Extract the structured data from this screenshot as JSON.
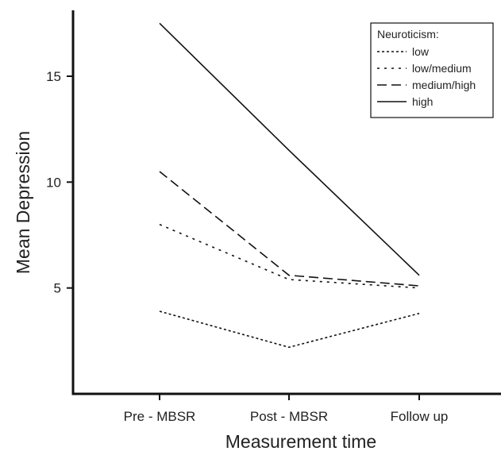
{
  "chart_data": {
    "type": "line",
    "categories": [
      "Pre - MBSR",
      "Post - MBSR",
      "Follow up"
    ],
    "ylabel": "Mean Depression",
    "xlabel": "Measurement time",
    "ylim": [
      0,
      18
    ],
    "yticks": [
      5,
      10,
      15
    ],
    "legend": {
      "title": "Neuroticism:",
      "position": "top-right"
    },
    "series": [
      {
        "name": "low",
        "values": [
          3.9,
          2.2,
          3.8
        ],
        "dash": "3,3"
      },
      {
        "name": "low/medium",
        "values": [
          8.0,
          5.4,
          5.0
        ],
        "dash": "3,6"
      },
      {
        "name": "medium/high",
        "values": [
          10.5,
          5.6,
          5.1
        ],
        "dash": "12,6"
      },
      {
        "name": "high",
        "values": [
          17.5,
          11.5,
          5.6
        ],
        "dash": ""
      }
    ]
  }
}
